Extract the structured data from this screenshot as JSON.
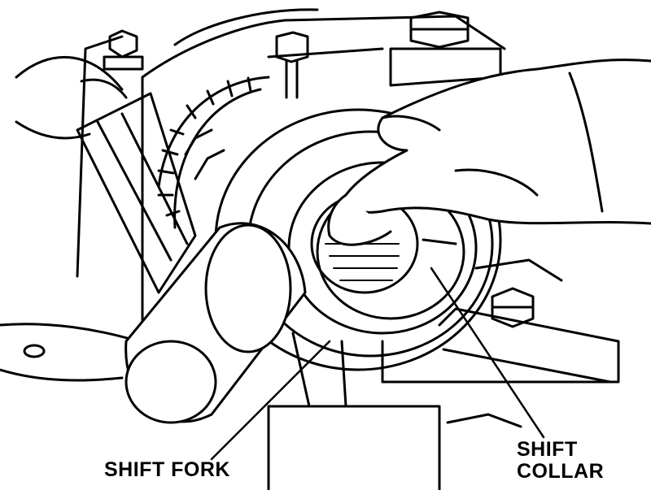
{
  "labels": {
    "shift_fork": "SHIFT FORK",
    "shift_collar_line1": "SHIFT",
    "shift_collar_line2": "COLLAR"
  },
  "colors": {
    "ink": "#000000",
    "paper": "#ffffff"
  }
}
